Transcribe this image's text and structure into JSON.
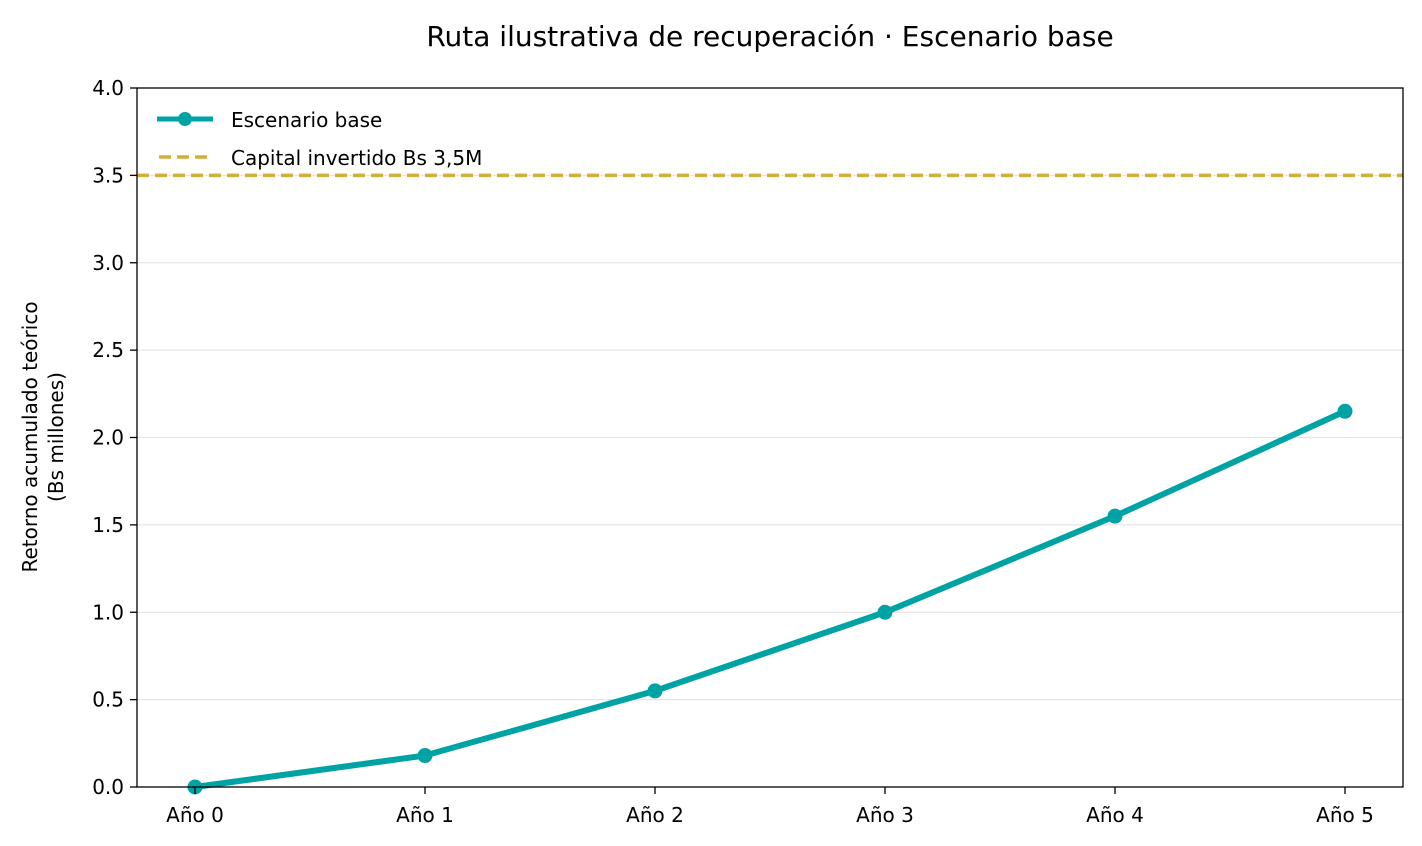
{
  "chart_data": {
    "type": "line",
    "title": "Ruta ilustrativa de recuperación · Escenario base",
    "xlabel": "",
    "ylabel_lines": [
      "Retorno acumulado teórico",
      "(Bs millones)"
    ],
    "categories": [
      "Año 0",
      "Año 1",
      "Año 2",
      "Año 3",
      "Año 4",
      "Año 5"
    ],
    "series": [
      {
        "name": "Escenario base",
        "values": [
          0.0,
          0.18,
          0.55,
          1.0,
          1.55,
          2.15
        ],
        "color": "#00A3A3"
      }
    ],
    "reference_line": {
      "name": "Capital invertido Bs 3,5M",
      "value": 3.5,
      "color": "#D4AF37",
      "style": "dashed"
    },
    "ylim": [
      0,
      4.0
    ],
    "yticks": [
      "0.0",
      "0.5",
      "1.0",
      "1.5",
      "2.0",
      "2.5",
      "3.0",
      "3.5",
      "4.0"
    ],
    "grid": "horizontal",
    "legend_position": "top-left"
  }
}
